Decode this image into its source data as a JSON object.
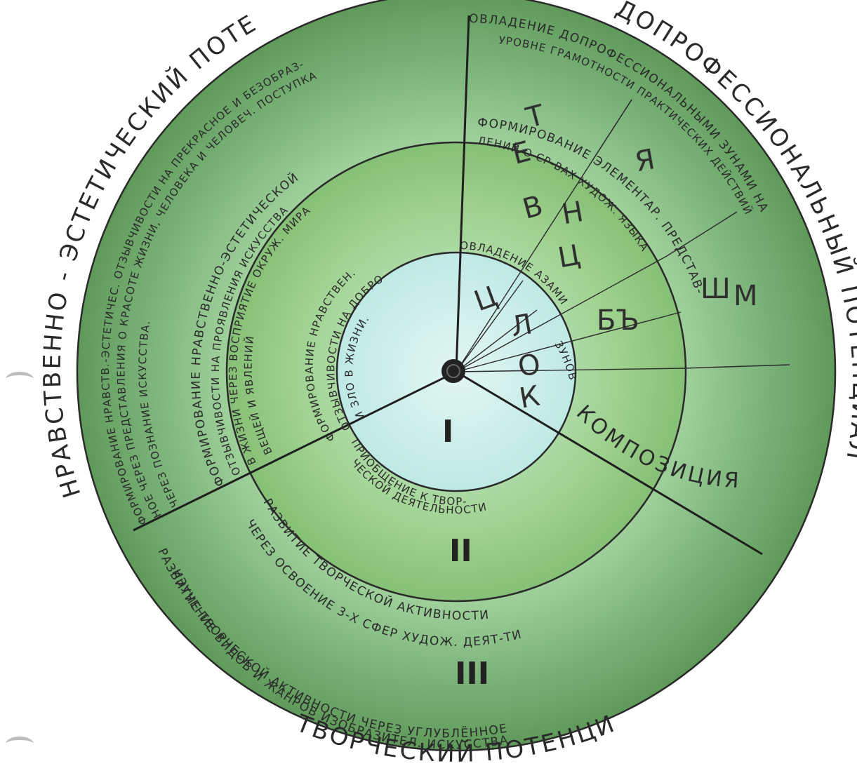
{
  "outer_labels": {
    "left": "НРАВСТВЕННО - ЭСТЕТИЧЕСКИЙ ПОТЕНЦИАЛ",
    "right": "ДОПРОФЕССИОНАЛЬНЫЙ ПОТЕНЦИАЛ",
    "bottom": "ТВОРЧЕСКИЙ ПОТЕНЦИАЛ"
  },
  "ring_outer": {
    "left_line1": "ФОРМИРОВАНИЕ НРАВСТВ.-ЭСТЕТИЧЕС. ОТЗЫВЧИВОСТИ НА ПРЕКРАСНОЕ И БЕЗОБРАЗ-",
    "left_line2": "НОЕ ЧЕРЕЗ ПРЕДСТАВЛЕНИЯ О КРАСОТЕ ЖИЗНИ, ЧЕЛОВЕКА И ЧЕЛОВЕЧ. ПОСТУПКА",
    "left_line3": "ЧЕРЕЗ ПОЗНАНИЕ ИСКУССТВА.",
    "right_line1": "ОВЛАДЕНИЕ ДОПРОФЕССИОНАЛЬНЫМИ ЗУНАМИ НА",
    "right_line2": "УРОВНЕ ГРАМОТНОСТИ ПРАКТИЧЕСКИХ ДЕЙСТВИЙ",
    "bottom_line1": "РАЗВИТИЕ ТВОРЧЕСКОЙ АКТИВНОСТИ ЧЕРЕЗ УГЛУБЛЁННОЕ",
    "bottom_line2": "ИЗУЧЕНИЕ ВИДОВ И ЖАНРОВ ИЗОБРАЗИТЕЛ. ИСКУССТВА"
  },
  "ring_middle": {
    "left_line1": "ФОРМИРОВАНИЕ НРАВСТВЕННО-ЭСТЕТИЧЕСКОЙ",
    "left_line2": "ОТЗЫВЧИВОСТИ НА ПРОЯВЛЕНИЯ ИСКУССТВА",
    "left_line3": "В ЖИЗНИ ЧЕРЕЗ ВОСПРИЯТИЕ ОКРУЖ. МИРА",
    "left_line4": "ВЕЩЕЙ И ЯВЛЕНИЙ",
    "right_line1": "ФОРМИРОВАНИЕ ЭЛЕМЕНТАР. ПРЕДСТАВ-",
    "right_line2": "ЛЕНИЙ О СР-ВАХ ХУДОЖ. ЯЗЫКА",
    "bottom_line1": "РАЗВИТИЕ ТВОРЧЕСКОЙ АКТИВНОСТИ",
    "bottom_line2": "ЧЕРЕЗ ОСВОЕНИЕ 3-Х СФЕР ХУДОЖ. ДЕЯТ-ТИ"
  },
  "ring_inner": {
    "left_line1": "ФОРМИРОВАНИЕ НРАВСТВЕН.",
    "left_line2": "ОТЗЫВЧИВОСТИ НА ДОБРО",
    "left_line3": "И ЗЛО В ЖИЗНИ.",
    "right_line1": "ОВЛАДЕНИЕ АЗАМИ",
    "right_line2": "ЗУНОВ",
    "bottom_line1": "ПРИОБЩЕНИЕ К ТВОР-",
    "bottom_line2": "ЧЕСКОЙ ДЕЯТЕЛЬНОСТИ"
  },
  "roman_numerals": [
    "I",
    "II",
    "III"
  ],
  "letters": {
    "tsvet": [
      "Ц",
      "В",
      "Е",
      "Т"
    ],
    "tsvet_2": [
      "Ц",
      "Н",
      "Л",
      "Я"
    ],
    "kompozitsiya_inner": [
      "К",
      "О",
      "Л"
    ],
    "kompozitsiya_outer": "КОМПОЗИЦИЯ",
    "obem": "БЪ",
    "m_letter": "М",
    "sh_letter": "Ш"
  },
  "colors": {
    "green_dark": "#5f9a5a",
    "green_mid": "#8cc07a",
    "green_light": "#c6e8b8",
    "cyan_light": "#bfe9e6"
  }
}
